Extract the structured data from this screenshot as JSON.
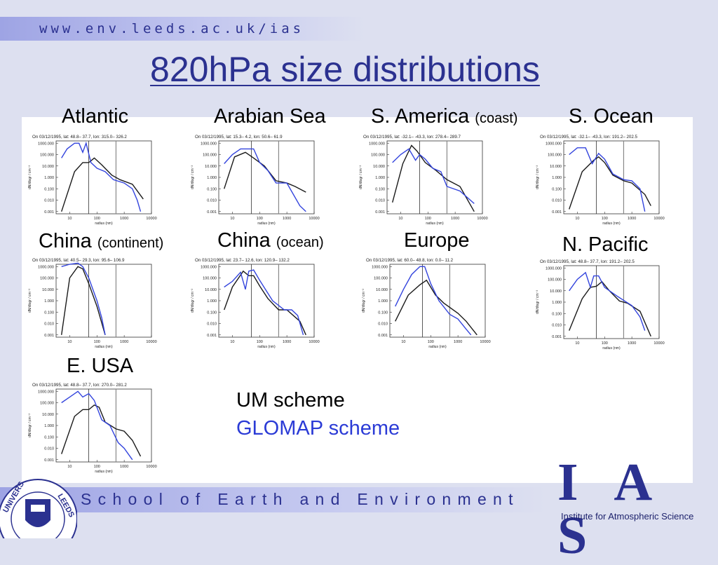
{
  "header": {
    "url": "www.env.leeds.ac.uk/ias"
  },
  "title": "820hPa size distributions",
  "colors": {
    "um": "#1a1a1a",
    "glomap": "#3344dd",
    "brand": "#2b3190"
  },
  "y_ticks": [
    "1000.000",
    "100.000",
    "10.000",
    "1.000",
    "0.100",
    "0.010",
    "0.001"
  ],
  "x_ticks": [
    "10",
    "100",
    "1000",
    "10000"
  ],
  "xlabel": "radius (nm)",
  "ylabel": "dN/dlogr / cm⁻³",
  "panels": [
    {
      "name": "Atlantic",
      "qualifier": "",
      "header": "On 03/12/1995, lat: 48.8– 37.7, lon: 315.0– 326.2",
      "um": [
        [
          5,
          -3
        ],
        [
          15,
          0.5
        ],
        [
          30,
          1.3
        ],
        [
          50,
          1.3
        ],
        [
          80,
          1.7
        ],
        [
          150,
          1.1
        ],
        [
          350,
          0.2
        ],
        [
          700,
          -0.2
        ],
        [
          2000,
          -0.6
        ],
        [
          5000,
          -1.9
        ]
      ],
      "glomap": [
        [
          5,
          1.7
        ],
        [
          8,
          2.5
        ],
        [
          15,
          3
        ],
        [
          22,
          3
        ],
        [
          30,
          2.2
        ],
        [
          40,
          3
        ],
        [
          60,
          1.3
        ],
        [
          100,
          0.8
        ],
        [
          200,
          0.5
        ],
        [
          400,
          -0.2
        ],
        [
          1000,
          -0.5
        ],
        [
          2000,
          -1
        ],
        [
          3000,
          -2
        ],
        [
          4000,
          -3
        ]
      ]
    },
    {
      "name": "Arabian Sea",
      "qualifier": "",
      "header": "On 03/12/1995, lat: 15.3– 4.2, lon: 50.6– 61.9",
      "um": [
        [
          5,
          -1
        ],
        [
          12,
          1.8
        ],
        [
          30,
          2.2
        ],
        [
          60,
          1.7
        ],
        [
          150,
          1
        ],
        [
          400,
          -0.3
        ],
        [
          1000,
          -0.5
        ],
        [
          2000,
          -0.8
        ],
        [
          5000,
          -1.3
        ]
      ],
      "glomap": [
        [
          5,
          1.2
        ],
        [
          10,
          2
        ],
        [
          20,
          2.5
        ],
        [
          40,
          2.5
        ],
        [
          60,
          2.5
        ],
        [
          100,
          1.3
        ],
        [
          200,
          0.6
        ],
        [
          400,
          -0.5
        ],
        [
          1000,
          -0.5
        ],
        [
          3000,
          -2.5
        ],
        [
          5000,
          -3
        ]
      ]
    },
    {
      "name": "S. America",
      "qualifier": "(coast)",
      "header": "On 03/12/1995, lat: -32.1– -43.3, lon: 278.4– 289.7",
      "um": [
        [
          5,
          -2.2
        ],
        [
          12,
          1.2
        ],
        [
          25,
          2.8
        ],
        [
          40,
          2.3
        ],
        [
          80,
          1.3
        ],
        [
          200,
          0.6
        ],
        [
          500,
          -0.2
        ],
        [
          1500,
          -0.8
        ],
        [
          5000,
          -3
        ]
      ],
      "glomap": [
        [
          5,
          1.3
        ],
        [
          10,
          2
        ],
        [
          20,
          2.5
        ],
        [
          35,
          1.5
        ],
        [
          50,
          2
        ],
        [
          80,
          1.6
        ],
        [
          150,
          0.8
        ],
        [
          300,
          0.5
        ],
        [
          500,
          -0.8
        ],
        [
          1500,
          -1.2
        ],
        [
          5000,
          -2.3
        ]
      ]
    },
    {
      "name": "S. Ocean",
      "qualifier": "",
      "header": "On 03/12/1995, lat: -32.1– -43.3, lon: 191.2– 202.5",
      "um": [
        [
          5,
          -2.8
        ],
        [
          15,
          0.5
        ],
        [
          40,
          1.5
        ],
        [
          60,
          1.8
        ],
        [
          100,
          1.3
        ],
        [
          200,
          0.2
        ],
        [
          500,
          -0.3
        ],
        [
          1000,
          -0.5
        ],
        [
          3000,
          -1.5
        ],
        [
          5000,
          -2.5
        ]
      ],
      "glomap": [
        [
          5,
          2
        ],
        [
          10,
          2.6
        ],
        [
          20,
          2.6
        ],
        [
          35,
          1.2
        ],
        [
          60,
          2.1
        ],
        [
          100,
          1.6
        ],
        [
          200,
          0.3
        ],
        [
          500,
          -0.2
        ],
        [
          1000,
          -0.3
        ],
        [
          2000,
          -1
        ],
        [
          3000,
          -3
        ]
      ]
    },
    {
      "name": "China",
      "qualifier": "(continent)",
      "header": "On 03/12/1995, lat: 40.5– 29.3, lon: 95.6– 106.9",
      "um": [
        [
          5,
          -3
        ],
        [
          10,
          2
        ],
        [
          20,
          3
        ],
        [
          30,
          2.8
        ],
        [
          50,
          1.5
        ],
        [
          100,
          -0.5
        ],
        [
          200,
          -3
        ]
      ],
      "glomap": [
        [
          5,
          3
        ],
        [
          10,
          3.2
        ],
        [
          20,
          3.3
        ],
        [
          30,
          3
        ],
        [
          50,
          2
        ],
        [
          100,
          0
        ],
        [
          150,
          -1.5
        ],
        [
          200,
          -3
        ]
      ]
    },
    {
      "name": "China",
      "qualifier": "(ocean)",
      "header": "On 03/12/1995, lat: 23.7– 12.6, lon: 120.9– 132.2",
      "um": [
        [
          5,
          -0.8
        ],
        [
          10,
          1.2
        ],
        [
          25,
          2.6
        ],
        [
          40,
          2.2
        ],
        [
          60,
          2.2
        ],
        [
          100,
          1.3
        ],
        [
          200,
          0.2
        ],
        [
          500,
          -0.8
        ],
        [
          1000,
          -0.8
        ],
        [
          3000,
          -1.8
        ],
        [
          5000,
          -3
        ]
      ],
      "glomap": [
        [
          5,
          1.2
        ],
        [
          10,
          1.7
        ],
        [
          20,
          2.5
        ],
        [
          30,
          1
        ],
        [
          40,
          2.6
        ],
        [
          60,
          2.7
        ],
        [
          100,
          1.8
        ],
        [
          300,
          0
        ],
        [
          800,
          -0.8
        ],
        [
          1500,
          -0.8
        ],
        [
          2500,
          -1.3
        ],
        [
          4000,
          -3
        ]
      ]
    },
    {
      "name": "Europe",
      "qualifier": "",
      "header": "On 03/12/1995, lat: 60.0– 48.8, lon: 0.0– 11.2",
      "um": [
        [
          5,
          -1.8
        ],
        [
          15,
          0.5
        ],
        [
          40,
          1.4
        ],
        [
          70,
          1.8
        ],
        [
          150,
          0.5
        ],
        [
          300,
          -0.2
        ],
        [
          1000,
          -1.1
        ],
        [
          2000,
          -1.8
        ],
        [
          5000,
          -3
        ]
      ],
      "glomap": [
        [
          5,
          -0.5
        ],
        [
          10,
          1
        ],
        [
          20,
          2.3
        ],
        [
          40,
          3
        ],
        [
          60,
          3
        ],
        [
          100,
          1.5
        ],
        [
          200,
          0
        ],
        [
          500,
          -1.2
        ],
        [
          1000,
          -1.6
        ],
        [
          2000,
          -2.5
        ],
        [
          3000,
          -3
        ]
      ]
    },
    {
      "name": "N. Pacific",
      "qualifier": "",
      "header": "On 03/12/1995, lat: 48.8– 37.7, lon: 191.2– 202.5",
      "um": [
        [
          5,
          -2.5
        ],
        [
          15,
          0.3
        ],
        [
          30,
          1.3
        ],
        [
          50,
          1.4
        ],
        [
          80,
          1.8
        ],
        [
          150,
          1
        ],
        [
          350,
          0.1
        ],
        [
          700,
          -0.1
        ],
        [
          2000,
          -0.8
        ],
        [
          5000,
          -3
        ]
      ],
      "glomap": [
        [
          5,
          1
        ],
        [
          10,
          2
        ],
        [
          20,
          2.6
        ],
        [
          30,
          1.3
        ],
        [
          40,
          2.3
        ],
        [
          60,
          2.3
        ],
        [
          100,
          1.3
        ],
        [
          300,
          0.5
        ],
        [
          1000,
          -0.3
        ],
        [
          2000,
          -1.3
        ],
        [
          3000,
          -2.5
        ]
      ]
    },
    {
      "name": "E. USA",
      "qualifier": "",
      "header": "On 03/12/1995, lat: 48.8– 37.7, lon: 270.0– 281.2",
      "um": [
        [
          5,
          -2.5
        ],
        [
          15,
          0.8
        ],
        [
          30,
          1.4
        ],
        [
          50,
          1.4
        ],
        [
          80,
          1.8
        ],
        [
          120,
          1.6
        ],
        [
          200,
          0.3
        ],
        [
          500,
          -0.3
        ],
        [
          1000,
          -0.5
        ],
        [
          2000,
          -1.3
        ],
        [
          4000,
          -2.7
        ]
      ],
      "glomap": [
        [
          5,
          2
        ],
        [
          10,
          2.5
        ],
        [
          20,
          3
        ],
        [
          30,
          2.5
        ],
        [
          50,
          2.8
        ],
        [
          80,
          2.2
        ],
        [
          150,
          0.5
        ],
        [
          300,
          0
        ],
        [
          600,
          -1.5
        ],
        [
          1000,
          -2
        ],
        [
          2000,
          -3
        ]
      ]
    }
  ],
  "legend": {
    "um": "UM scheme",
    "glomap": "GLOMAP scheme"
  },
  "footer": {
    "school": "School of Earth and Environment",
    "ias": "I A S",
    "ias_subtitle": "Institute for Atmospheric Science",
    "university_seal_text": "UNIVERSITY OF LEEDS"
  }
}
